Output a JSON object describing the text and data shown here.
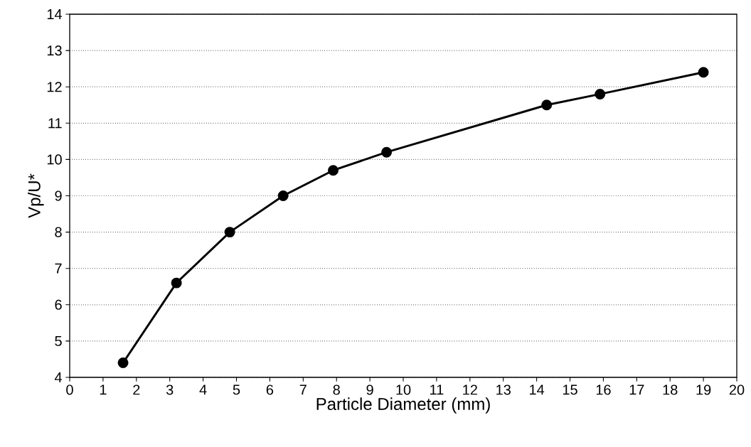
{
  "chart_data": {
    "type": "line",
    "xlabel": "Particle Diameter (mm)",
    "ylabel": "Vp/U*",
    "x": [
      1.6,
      3.2,
      4.8,
      6.4,
      7.9,
      9.5,
      14.3,
      15.9,
      19.0
    ],
    "series": [
      {
        "color": "#000000",
        "values": [
          4.4,
          6.6,
          8.0,
          9.0,
          9.7,
          10.2,
          11.5,
          11.8,
          12.4
        ]
      }
    ],
    "xlim": [
      0,
      20
    ],
    "ylim": [
      4,
      14
    ],
    "xticks": [
      0,
      1,
      2,
      3,
      4,
      5,
      6,
      7,
      8,
      9,
      10,
      11,
      12,
      13,
      14,
      15,
      16,
      17,
      18,
      19,
      20
    ],
    "yticks": [
      4,
      5,
      6,
      7,
      8,
      9,
      10,
      11,
      12,
      13,
      14
    ],
    "grid": "y",
    "marker": "circle",
    "line_style": "solid"
  }
}
